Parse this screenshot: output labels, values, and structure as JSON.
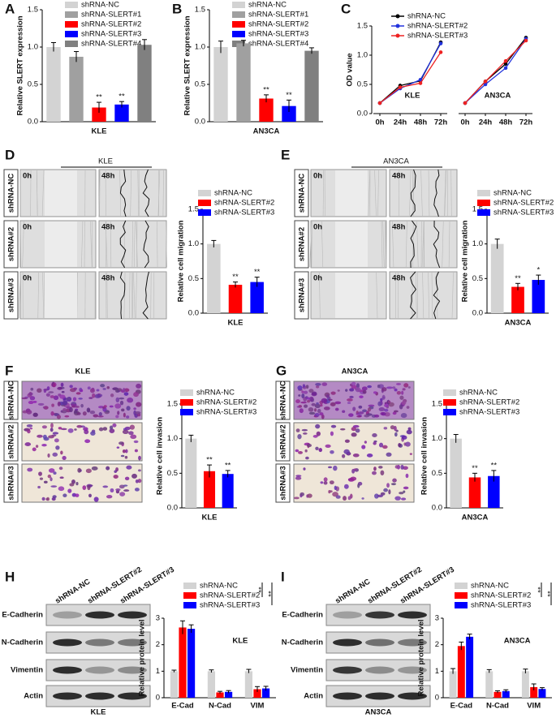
{
  "chart_data": [
    {
      "type": "bar",
      "letter": "A",
      "ylabel": "Relative SLERT expression",
      "xlabel": "KLE",
      "ylim": [
        0,
        1.5
      ],
      "yticks": [
        {
          "value": 0,
          "label": "0.0"
        },
        0.5,
        {
          "value": 1,
          "label": "1.0"
        },
        1.5
      ],
      "series": [
        {
          "name": "shRNA-NC",
          "color": "#d3d3d3",
          "values": [
            1.0
          ],
          "errors": [
            0.06
          ]
        },
        {
          "name": "shRNA-SLERT#1",
          "color": "#a0a0a0",
          "values": [
            0.87
          ],
          "errors": [
            0.07
          ]
        },
        {
          "name": "shRNA-SLERT#2",
          "color": "#ff0000",
          "values": [
            0.19
          ],
          "errors": [
            0.07
          ]
        },
        {
          "name": "shRNA-SLERT#3",
          "color": "#0000ff",
          "values": [
            0.23
          ],
          "errors": [
            0.04
          ]
        },
        {
          "name": "shRNA-SLERT#4",
          "color": "#808080",
          "values": [
            1.03
          ],
          "errors": [
            0.07
          ]
        }
      ],
      "sig": [
        null,
        null,
        "**",
        "**",
        null
      ]
    },
    {
      "type": "bar",
      "letter": "B",
      "ylabel": "Relative SLERT expression",
      "xlabel": "AN3CA",
      "ylim": [
        0,
        1.5
      ],
      "yticks": [
        {
          "value": 0,
          "label": "0.0"
        },
        0.5,
        {
          "value": 1,
          "label": "1.0"
        },
        1.5
      ],
      "series": [
        {
          "name": "shRNA-NC",
          "color": "#d3d3d3",
          "values": [
            1.0
          ],
          "errors": [
            0.08
          ]
        },
        {
          "name": "shRNA-SLERT#1",
          "color": "#a0a0a0",
          "values": [
            1.05
          ],
          "errors": [
            0.04
          ]
        },
        {
          "name": "shRNA-SLERT#2",
          "color": "#ff0000",
          "values": [
            0.31
          ],
          "errors": [
            0.05
          ]
        },
        {
          "name": "shRNA-SLERT#3",
          "color": "#0000ff",
          "values": [
            0.21
          ],
          "errors": [
            0.08
          ]
        },
        {
          "name": "shRNA-SLERT#4",
          "color": "#808080",
          "values": [
            0.95
          ],
          "errors": [
            0.04
          ]
        }
      ],
      "sig": [
        null,
        null,
        "**",
        "**",
        null
      ]
    },
    {
      "type": "line",
      "letter": "C",
      "ylabel": "OD value",
      "ylim": [
        0,
        1.5
      ],
      "yticks": [
        {
          "value": 0,
          "label": "0.0"
        },
        0.5,
        {
          "value": 1,
          "label": "1.0"
        },
        1.5
      ],
      "categories": [
        "0h",
        "24h",
        "48h",
        "72h"
      ],
      "series": [
        {
          "name": "shRNA-NC",
          "color": "#000000"
        },
        {
          "name": "shRNA-SLERT#2",
          "color": "#2233dd"
        },
        {
          "name": "shRNA-SLERT#3",
          "color": "#ee2222"
        }
      ],
      "panels": [
        {
          "label": "KLE",
          "values": [
            [
              0.18,
              0.48,
              0.56,
              1.22
            ],
            [
              0.18,
              0.43,
              0.58,
              1.2
            ],
            [
              0.18,
              0.45,
              0.52,
              1.05
            ]
          ]
        },
        {
          "label": "AN3CA",
          "values": [
            [
              0.18,
              0.55,
              0.85,
              1.3
            ],
            [
              0.18,
              0.5,
              0.78,
              1.28
            ],
            [
              0.18,
              0.55,
              0.9,
              1.25
            ]
          ]
        }
      ]
    },
    {
      "type": "bar",
      "letter": "D",
      "ylabel": "Relative cell migration",
      "xlabel": "KLE",
      "ylim": [
        0,
        1.5
      ],
      "yticks": [
        {
          "value": 0,
          "label": "0.0"
        },
        0.5,
        {
          "value": 1,
          "label": "1.0"
        },
        1.5
      ],
      "series": [
        {
          "name": "shRNA-NC",
          "color": "#d3d3d3",
          "values": [
            1.0
          ],
          "errors": [
            0.05
          ]
        },
        {
          "name": "shRNA-SLERT#2",
          "color": "#ff0000",
          "values": [
            0.41
          ],
          "errors": [
            0.04
          ]
        },
        {
          "name": "shRNA-SLERT#3",
          "color": "#0000ff",
          "values": [
            0.45
          ],
          "errors": [
            0.07
          ]
        }
      ],
      "sig": [
        null,
        "**",
        "**"
      ],
      "wound": {
        "header": "KLE",
        "rows": [
          "shRNA-NC",
          "shRNA#2",
          "shRNA#3"
        ],
        "times": [
          "0h",
          "48h"
        ]
      }
    },
    {
      "type": "bar",
      "letter": "E",
      "ylabel": "Relative cell migration",
      "xlabel": "AN3CA",
      "ylim": [
        0,
        1.5
      ],
      "yticks": [
        {
          "value": 0,
          "label": "0.0"
        },
        0.5,
        {
          "value": 1,
          "label": "1.0"
        },
        1.5
      ],
      "series": [
        {
          "name": "shRNA-NC",
          "color": "#d3d3d3",
          "values": [
            1.0
          ],
          "errors": [
            0.07
          ]
        },
        {
          "name": "shRNA-SLERT#2",
          "color": "#ff0000",
          "values": [
            0.38
          ],
          "errors": [
            0.05
          ]
        },
        {
          "name": "shRNA-SLERT#3",
          "color": "#0000ff",
          "values": [
            0.48
          ],
          "errors": [
            0.07
          ]
        }
      ],
      "sig": [
        null,
        "**",
        "*"
      ],
      "wound": {
        "header": "AN3CA",
        "rows": [
          "shRNA-NC",
          "shRNA#2",
          "shRNA#3"
        ],
        "times": [
          "0h",
          "48h"
        ]
      }
    },
    {
      "type": "bar",
      "letter": "F",
      "ylabel": "Relative cell invasion",
      "xlabel": "KLE",
      "ylim": [
        0,
        1.5
      ],
      "yticks": [
        {
          "value": 0,
          "label": "0.0"
        },
        0.5,
        {
          "value": 1,
          "label": "1.0"
        },
        1.5
      ],
      "series": [
        {
          "name": "shRNA-NC",
          "color": "#d3d3d3",
          "values": [
            1.0
          ],
          "errors": [
            0.05
          ]
        },
        {
          "name": "shRNA-SLERT#2",
          "color": "#ff0000",
          "values": [
            0.53
          ],
          "errors": [
            0.09
          ]
        },
        {
          "name": "shRNA-SLERT#3",
          "color": "#0000ff",
          "values": [
            0.49
          ],
          "errors": [
            0.05
          ]
        }
      ],
      "sig": [
        null,
        "**",
        "**"
      ],
      "transwell": {
        "header": "KLE",
        "rows": [
          "shRNA-NC",
          "shRNA#2",
          "shRNA#3"
        ]
      }
    },
    {
      "type": "bar",
      "letter": "G",
      "ylabel": "Relative cell invasion",
      "xlabel": "AN3CA",
      "ylim": [
        0,
        1.5
      ],
      "yticks": [
        {
          "value": 0,
          "label": "0.0"
        },
        0.5,
        {
          "value": 1,
          "label": "1.0"
        },
        1.5
      ],
      "series": [
        {
          "name": "shRNA-NC",
          "color": "#d3d3d3",
          "values": [
            1.0
          ],
          "errors": [
            0.06
          ]
        },
        {
          "name": "shRNA-SLERT#2",
          "color": "#ff0000",
          "values": [
            0.44
          ],
          "errors": [
            0.06
          ]
        },
        {
          "name": "shRNA-SLERT#3",
          "color": "#0000ff",
          "values": [
            0.46
          ],
          "errors": [
            0.08
          ]
        }
      ],
      "sig": [
        null,
        "**",
        "**"
      ],
      "transwell": {
        "header": "AN3CA",
        "rows": [
          "shRNA-NC",
          "shRNA#2",
          "shRNA#3"
        ]
      }
    },
    {
      "type": "bar",
      "letter": "H",
      "ylabel": "Relative protein level",
      "label": "KLE",
      "ylim": [
        0,
        3
      ],
      "yticks": [
        0,
        1,
        2,
        3
      ],
      "categories": [
        "E-Cad",
        "N-Cad",
        "VIM"
      ],
      "series": [
        {
          "name": "shRNA-NC",
          "color": "#d3d3d3",
          "values": [
            1,
            1,
            1
          ],
          "errors": [
            0.04,
            0.05,
            0.07
          ]
        },
        {
          "name": "shRNA-SLERT#2",
          "color": "#ff0000",
          "values": [
            2.65,
            0.2,
            0.32
          ],
          "errors": [
            0.25,
            0.04,
            0.1
          ]
        },
        {
          "name": "shRNA-SLERT#3",
          "color": "#0000ff",
          "values": [
            2.6,
            0.22,
            0.35
          ],
          "errors": [
            0.15,
            0.05,
            0.08
          ]
        }
      ],
      "sig": [
        "**",
        "**"
      ],
      "blot": {
        "lanes": [
          "shRNA-NC",
          "shRNA-SLERT#2",
          "shRNA-SLERT#3"
        ],
        "proteins": [
          "E-Cadherin",
          "N-Cadherin",
          "Vimentin",
          "Actin"
        ],
        "footer": "KLE"
      }
    },
    {
      "type": "bar",
      "letter": "I",
      "ylabel": "Relative protein level",
      "label": "AN3CA",
      "ylim": [
        0,
        3
      ],
      "yticks": [
        0,
        1,
        2,
        3
      ],
      "categories": [
        "E-Cad",
        "N-Cad",
        "VIM"
      ],
      "series": [
        {
          "name": "shRNA-NC",
          "color": "#d3d3d3",
          "values": [
            1,
            1,
            1
          ],
          "errors": [
            0.1,
            0.06,
            0.08
          ]
        },
        {
          "name": "shRNA-SLERT#2",
          "color": "#ff0000",
          "values": [
            1.95,
            0.22,
            0.4
          ],
          "errors": [
            0.15,
            0.04,
            0.12
          ]
        },
        {
          "name": "shRNA-SLERT#3",
          "color": "#0000ff",
          "values": [
            2.3,
            0.25,
            0.33
          ],
          "errors": [
            0.1,
            0.05,
            0.05
          ]
        }
      ],
      "sig": [
        "**",
        "**"
      ],
      "blot": {
        "lanes": [
          "shRNA-NC",
          "shRNA-SLERT#2",
          "shRNA-SLERT#3"
        ],
        "proteins": [
          "E-Cadherin",
          "N-Cadherin",
          "Vimentin",
          "Actin"
        ],
        "footer": "AN3CA"
      }
    }
  ]
}
